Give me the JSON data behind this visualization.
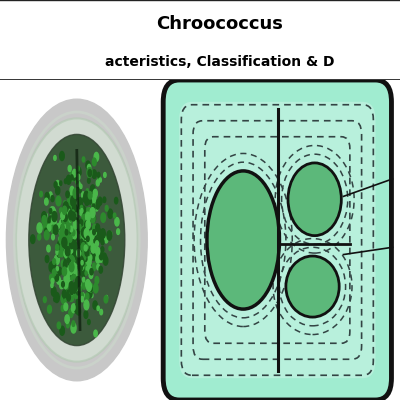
{
  "title_line1": "Chroococcus",
  "title_line2": "acteristics, Classification & D",
  "title_bg": "#e8f0fa",
  "title_border": "#222222",
  "photo_bg": "#b8b8b8",
  "main_bg": "#e0e0e0",
  "sheath_fill": "#90e8c0",
  "sheath_inner_fill": "#a8eece",
  "cell_fill": "#5cb87a",
  "cell_border": "#111111",
  "dashed_color": "#333333",
  "diag_bg": "#f0f0f0"
}
